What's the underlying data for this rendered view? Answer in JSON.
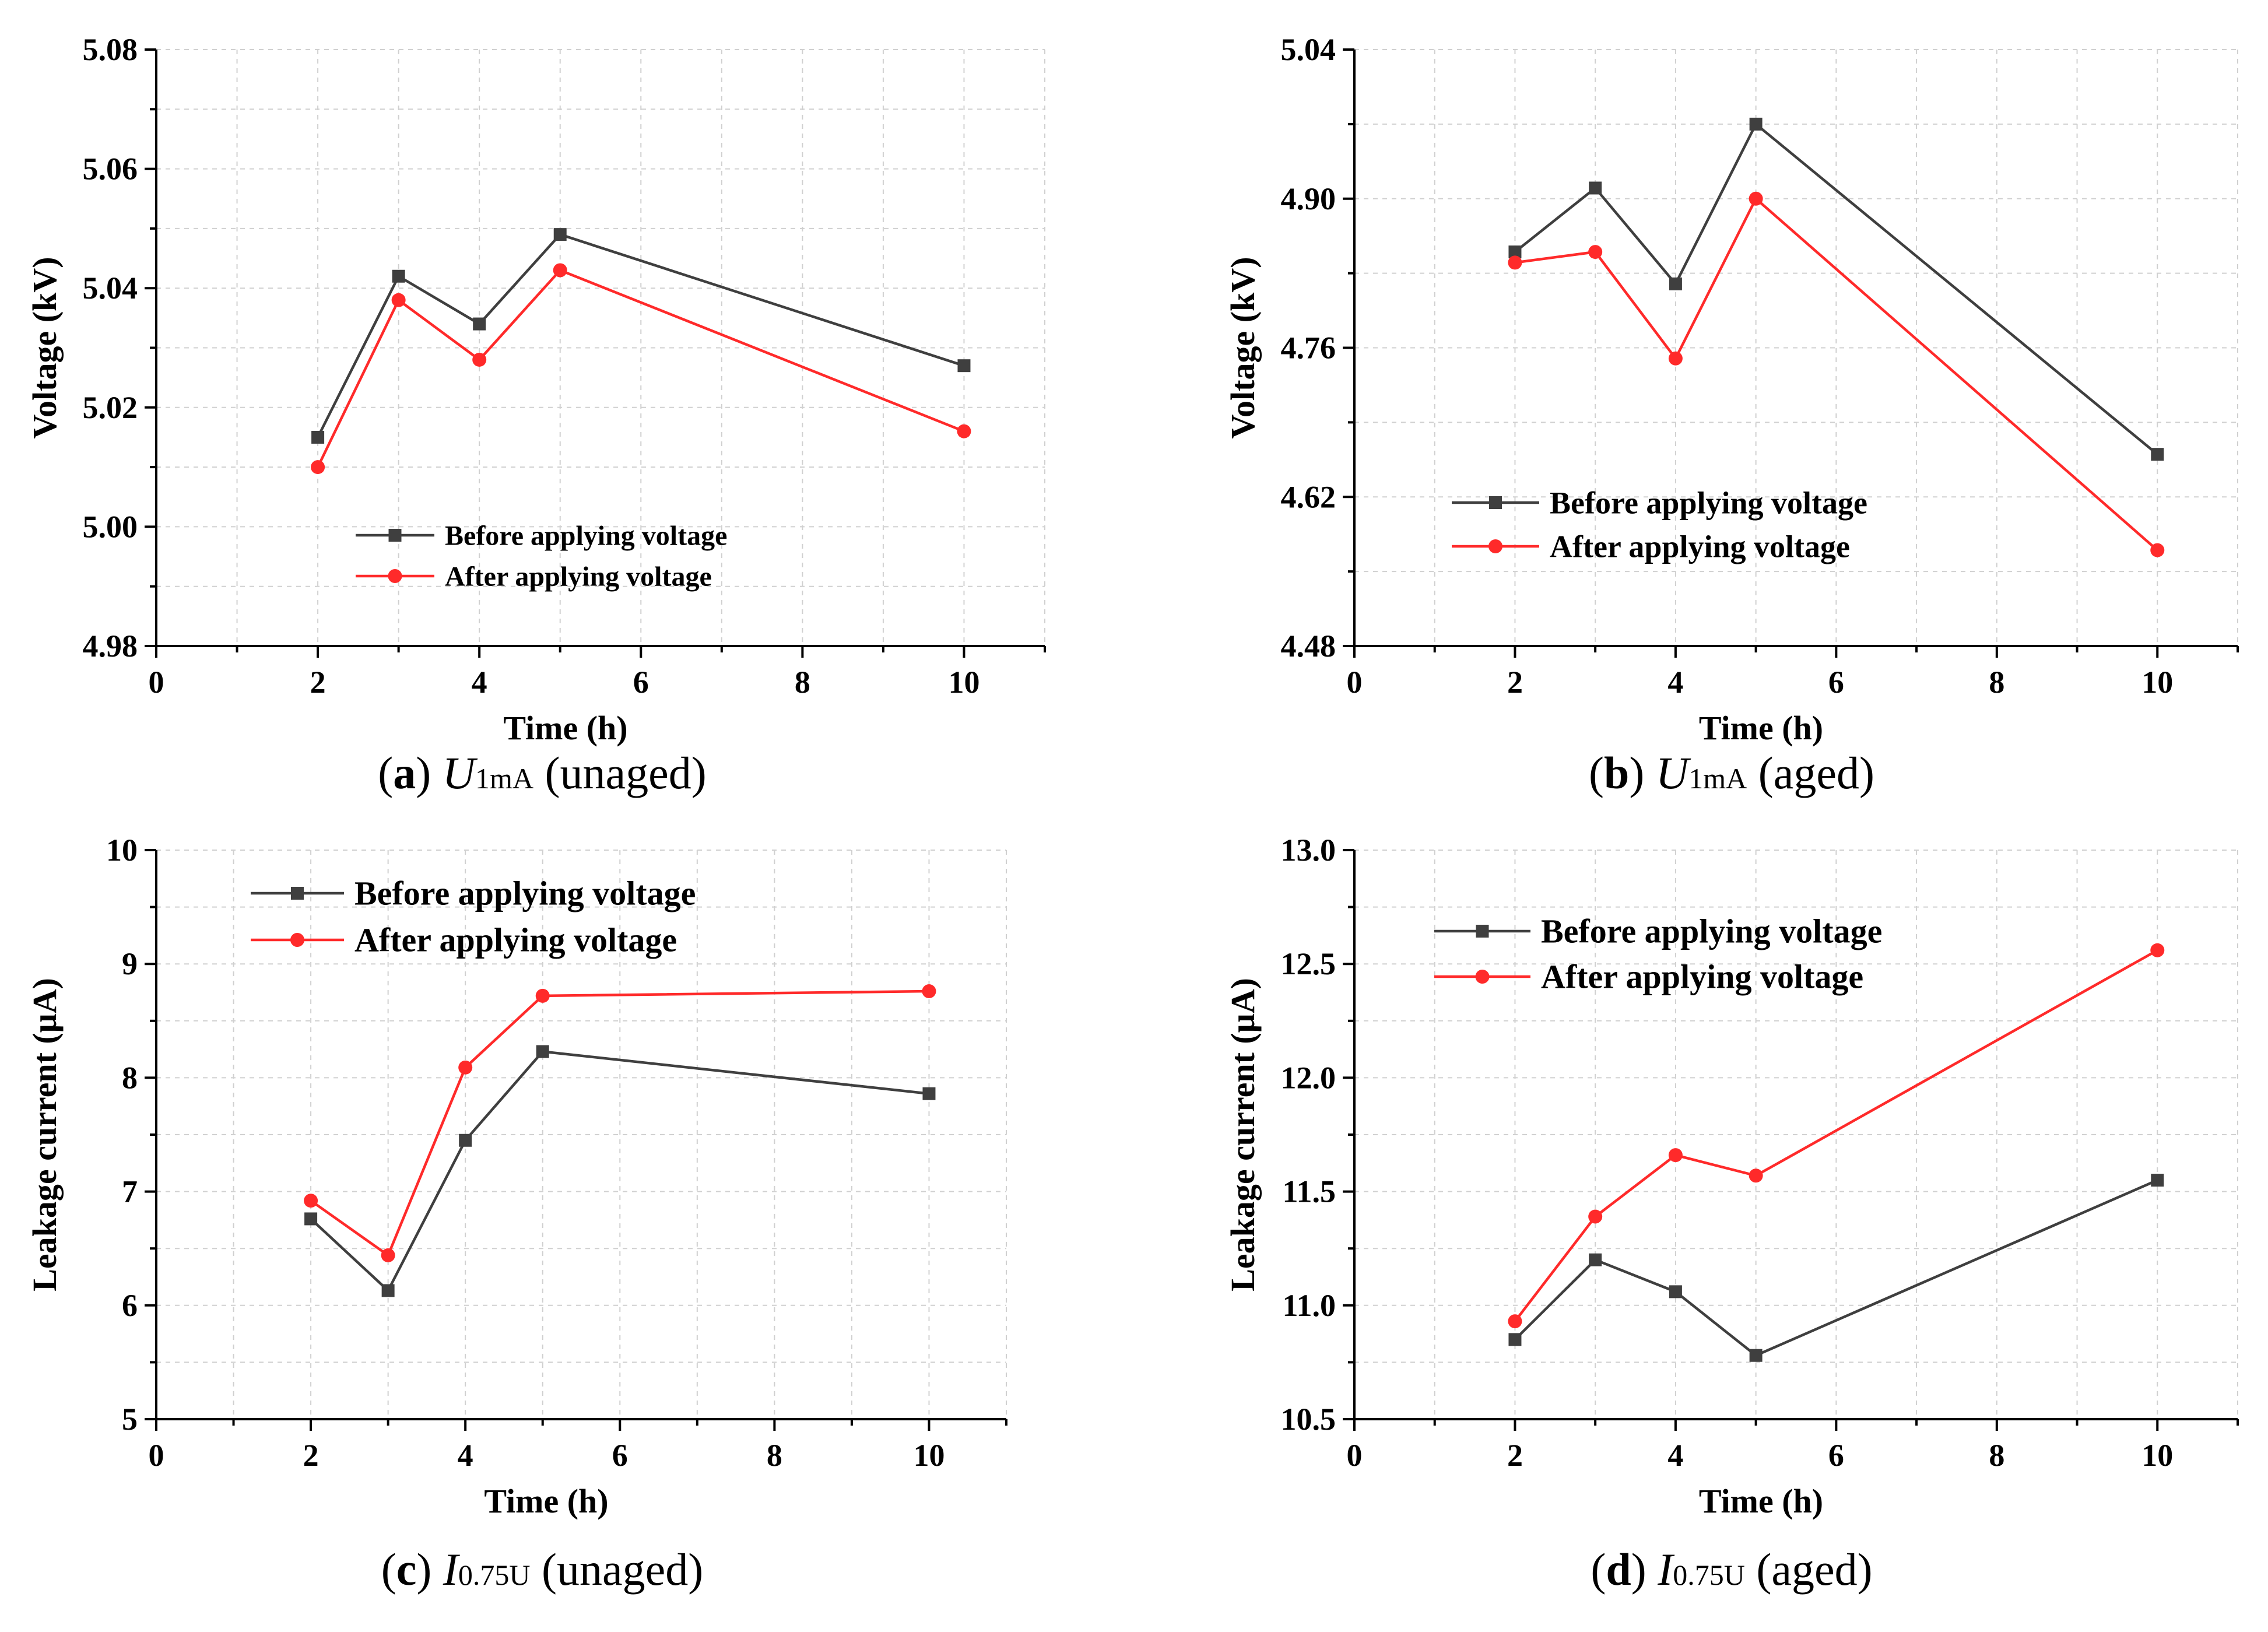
{
  "colors": {
    "before": "#3f3f3f",
    "after": "#ff2a2a",
    "axis": "#000000",
    "grid": "#d0d0d0"
  },
  "chart_data": [
    {
      "id": "a",
      "type": "line",
      "caption": {
        "letter": "a",
        "symbol": "U",
        "subscript": "1mA",
        "condition": "(unaged)"
      },
      "xlabel": "Time (h)",
      "ylabel": "Voltage (kV)",
      "xlim": [
        0,
        11
      ],
      "ylim": [
        4.98,
        5.08
      ],
      "xticks": [
        0,
        2,
        4,
        6,
        8,
        10
      ],
      "yticks": [
        4.98,
        5.0,
        5.02,
        5.04,
        5.06,
        5.08
      ],
      "ytick_labels": [
        "4.98",
        "5.00",
        "5.02",
        "5.04",
        "5.06",
        "5.08"
      ],
      "grid": true,
      "legend_position": "bottom-center",
      "series": [
        {
          "name": "Before applying voltage",
          "marker": "square",
          "color": "#3f3f3f",
          "x": [
            2,
            3,
            4,
            5,
            10
          ],
          "y": [
            5.015,
            5.042,
            5.034,
            5.049,
            5.027
          ]
        },
        {
          "name": "After applying voltage",
          "marker": "circle",
          "color": "#ff2a2a",
          "x": [
            2,
            3,
            4,
            5,
            10
          ],
          "y": [
            5.01,
            5.038,
            5.028,
            5.043,
            5.016
          ]
        }
      ]
    },
    {
      "id": "b",
      "type": "line",
      "caption": {
        "letter": "b",
        "symbol": "U",
        "subscript": "1mA",
        "condition": "(aged)"
      },
      "xlabel": "Time (h)",
      "ylabel": "Voltage (kV)",
      "xlim": [
        0,
        11
      ],
      "ylim": [
        4.48,
        5.04
      ],
      "xticks": [
        0,
        2,
        4,
        6,
        8,
        10
      ],
      "yticks": [
        4.48,
        4.62,
        4.76,
        4.9,
        5.04
      ],
      "ytick_labels": [
        "4.48",
        "4.62",
        "4.76",
        "4.90",
        "5.04"
      ],
      "grid": true,
      "legend_position": "center-left",
      "series": [
        {
          "name": "Before applying voltage",
          "marker": "square",
          "color": "#3f3f3f",
          "x": [
            2,
            3,
            4,
            5,
            10
          ],
          "y": [
            4.85,
            4.91,
            4.82,
            4.97,
            4.66
          ]
        },
        {
          "name": "After applying voltage",
          "marker": "circle",
          "color": "#ff2a2a",
          "x": [
            2,
            3,
            4,
            5,
            10
          ],
          "y": [
            4.84,
            4.85,
            4.75,
            4.9,
            4.57
          ]
        }
      ]
    },
    {
      "id": "c",
      "type": "line",
      "caption": {
        "letter": "c",
        "symbol": "I",
        "subscript": "0.75U",
        "condition": "(unaged)"
      },
      "xlabel": "Time (h)",
      "ylabel": "Leakage current (μA)",
      "xlim": [
        0,
        11
      ],
      "ylim": [
        5,
        10
      ],
      "xticks": [
        0,
        2,
        4,
        6,
        8,
        10
      ],
      "yticks": [
        5,
        6,
        7,
        8,
        9,
        10
      ],
      "ytick_labels": [
        "5",
        "6",
        "7",
        "8",
        "9",
        "10"
      ],
      "grid": true,
      "legend_position": "top-left",
      "series": [
        {
          "name": "Before applying voltage",
          "marker": "square",
          "color": "#3f3f3f",
          "x": [
            2,
            3,
            4,
            5,
            10
          ],
          "y": [
            6.76,
            6.13,
            7.45,
            8.23,
            7.86
          ]
        },
        {
          "name": "After applying voltage",
          "marker": "circle",
          "color": "#ff2a2a",
          "x": [
            2,
            3,
            4,
            5,
            10
          ],
          "y": [
            6.92,
            6.44,
            8.09,
            8.72,
            8.76
          ]
        }
      ]
    },
    {
      "id": "d",
      "type": "line",
      "caption": {
        "letter": "d",
        "symbol": "I",
        "subscript": "0.75U",
        "condition": "(aged)"
      },
      "xlabel": "Time (h)",
      "ylabel": "Leakage current (μA)",
      "xlim": [
        0,
        11
      ],
      "ylim": [
        10.5,
        13.0
      ],
      "xticks": [
        0,
        2,
        4,
        6,
        8,
        10
      ],
      "yticks": [
        10.5,
        11.0,
        11.5,
        12.0,
        12.5,
        13.0
      ],
      "ytick_labels": [
        "10.5",
        "11.0",
        "11.5",
        "12.0",
        "12.5",
        "13.0"
      ],
      "grid": true,
      "legend_position": "top-left",
      "series": [
        {
          "name": "Before applying voltage",
          "marker": "square",
          "color": "#3f3f3f",
          "x": [
            2,
            3,
            4,
            5,
            10
          ],
          "y": [
            10.85,
            11.2,
            11.06,
            10.78,
            11.55
          ]
        },
        {
          "name": "After applying voltage",
          "marker": "circle",
          "color": "#ff2a2a",
          "x": [
            2,
            3,
            4,
            5,
            10
          ],
          "y": [
            10.93,
            11.39,
            11.66,
            11.57,
            12.56
          ]
        }
      ]
    }
  ]
}
